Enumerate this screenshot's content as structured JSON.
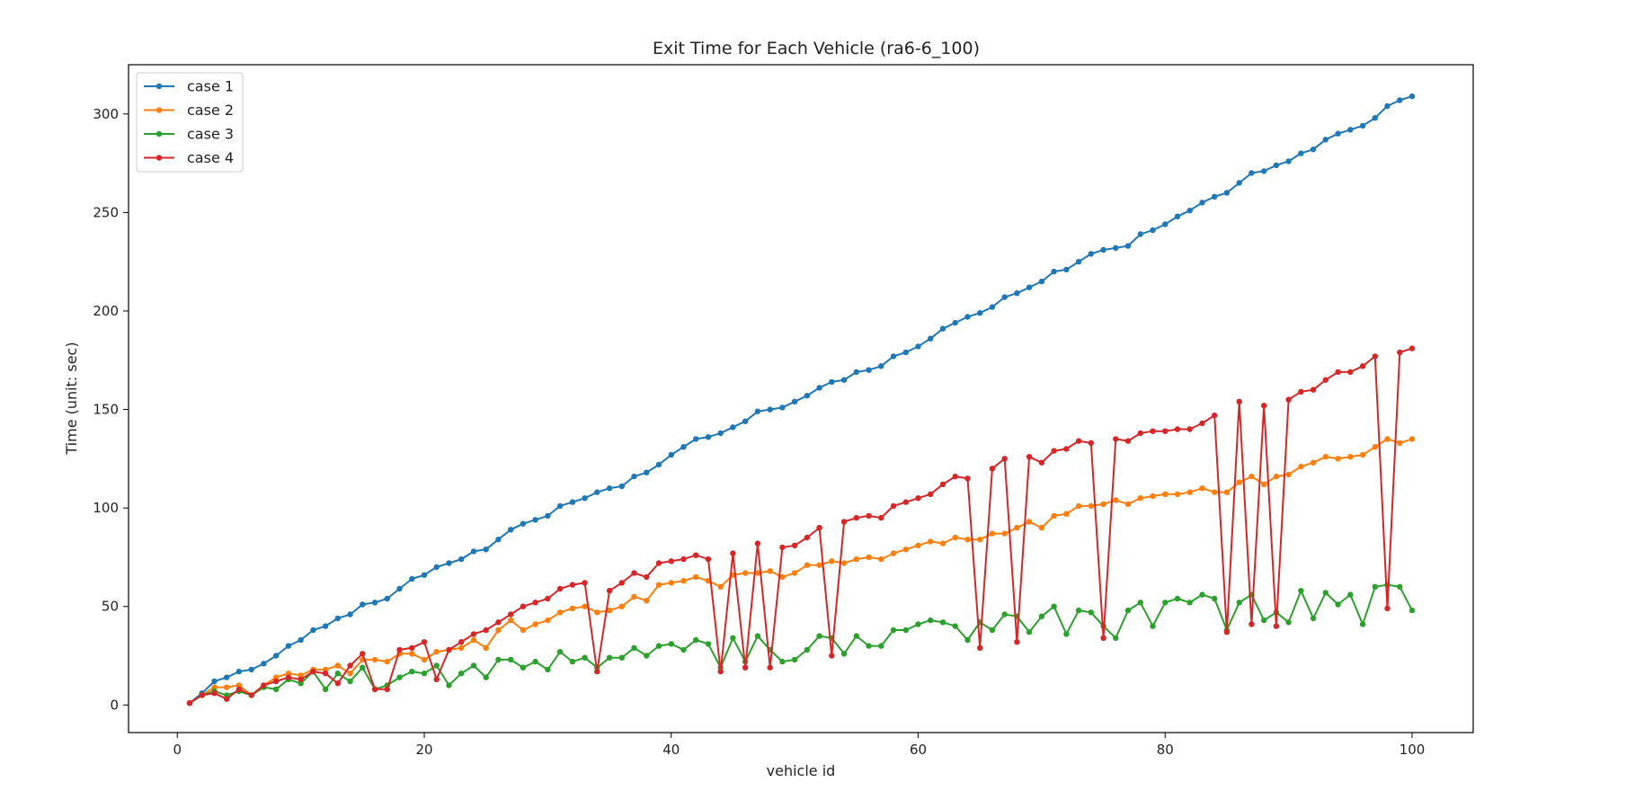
{
  "chart_data": {
    "type": "line",
    "title": "Exit Time for Each Vehicle (ra6-6_100)",
    "xlabel": "vehicle id",
    "ylabel": "Time (unit: sec)",
    "xlim": [
      -3.95,
      104.95
    ],
    "ylim": [
      -14,
      325
    ],
    "xticks": [
      0,
      20,
      40,
      60,
      80,
      100
    ],
    "yticks": [
      0,
      50,
      100,
      150,
      200,
      250,
      300
    ],
    "grid": false,
    "legend_position": "top-left",
    "x_start": 1,
    "series": [
      {
        "name": "case 1",
        "color": "#1f77b4",
        "values": [
          1,
          6,
          12,
          14,
          17,
          18,
          21,
          25,
          30,
          33,
          38,
          40,
          44,
          46,
          51,
          52,
          54,
          59,
          64,
          66,
          70,
          72,
          74,
          78,
          79,
          84,
          89,
          92,
          94,
          96,
          101,
          103,
          105,
          108,
          110,
          111,
          116,
          118,
          122,
          127,
          131,
          135,
          136,
          138,
          141,
          144,
          149,
          150,
          151,
          154,
          157,
          161,
          164,
          165,
          169,
          170,
          172,
          177,
          179,
          182,
          186,
          191,
          194,
          197,
          199,
          202,
          207,
          209,
          212,
          215,
          220,
          221,
          225,
          229,
          231,
          232,
          233,
          239,
          241,
          244,
          248,
          251,
          255,
          258,
          260,
          265,
          270,
          271,
          274,
          276,
          280,
          282,
          287,
          290,
          292,
          294,
          298,
          304,
          307,
          309
        ]
      },
      {
        "name": "case 2",
        "color": "#ff7f0e",
        "values": [
          1,
          5,
          9,
          9,
          10,
          5,
          10,
          14,
          16,
          15,
          18,
          18,
          20,
          16,
          23,
          23,
          22,
          26,
          26,
          23,
          27,
          28,
          29,
          33,
          29,
          38,
          43,
          38,
          41,
          43,
          47,
          49,
          50,
          47,
          48,
          50,
          55,
          53,
          61,
          62,
          63,
          65,
          63,
          60,
          66,
          67,
          67,
          68,
          65,
          67,
          71,
          71,
          73,
          72,
          74,
          75,
          74,
          77,
          79,
          81,
          83,
          82,
          85,
          84,
          84,
          87,
          87,
          90,
          93,
          90,
          96,
          97,
          101,
          101,
          102,
          104,
          102,
          105,
          106,
          107,
          107,
          108,
          110,
          108,
          108,
          113,
          116,
          112,
          116,
          117,
          121,
          123,
          126,
          125,
          126,
          127,
          131,
          135,
          133,
          135
        ]
      },
      {
        "name": "case 3",
        "color": "#2ca02c",
        "values": [
          1,
          5,
          7,
          5,
          7,
          5,
          9,
          8,
          13,
          11,
          17,
          8,
          16,
          12,
          19,
          8,
          10,
          14,
          17,
          16,
          20,
          10,
          16,
          20,
          14,
          23,
          23,
          19,
          22,
          18,
          27,
          22,
          24,
          19,
          24,
          24,
          29,
          25,
          30,
          31,
          28,
          33,
          31,
          19,
          34,
          22,
          35,
          28,
          22,
          23,
          28,
          35,
          34,
          26,
          35,
          30,
          30,
          38,
          38,
          41,
          43,
          42,
          40,
          33,
          42,
          38,
          46,
          45,
          37,
          45,
          50,
          36,
          48,
          47,
          40,
          34,
          48,
          52,
          40,
          52,
          54,
          52,
          56,
          54,
          38,
          52,
          56,
          43,
          47,
          42,
          58,
          44,
          57,
          51,
          56,
          41,
          60,
          61,
          60,
          48
        ]
      },
      {
        "name": "case 4",
        "color": "#d62728",
        "values": [
          1,
          5,
          6,
          3,
          8,
          5,
          10,
          12,
          14,
          13,
          17,
          16,
          11,
          20,
          26,
          8,
          8,
          28,
          29,
          32,
          13,
          28,
          32,
          36,
          38,
          42,
          46,
          50,
          52,
          54,
          59,
          61,
          62,
          17,
          58,
          62,
          67,
          65,
          72,
          73,
          74,
          76,
          74,
          17,
          77,
          19,
          82,
          19,
          80,
          81,
          85,
          90,
          25,
          93,
          95,
          96,
          95,
          101,
          103,
          105,
          107,
          112,
          116,
          115,
          29,
          120,
          125,
          32,
          126,
          123,
          129,
          130,
          134,
          133,
          34,
          135,
          134,
          138,
          139,
          139,
          140,
          140,
          143,
          147,
          37,
          154,
          41,
          152,
          40,
          155,
          159,
          160,
          165,
          169,
          169,
          172,
          177,
          49,
          179,
          181
        ]
      }
    ]
  }
}
